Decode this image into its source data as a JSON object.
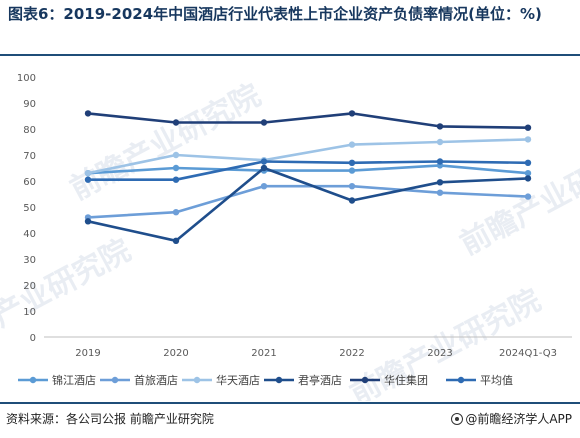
{
  "title": "图表6：2019-2024年中国酒店行业代表性上市企业资产负债率情况(单位：%)",
  "footer": {
    "source": "资料来源：各公司公报 前瞻产业研究院",
    "brand": "@前瞻经济学人APP"
  },
  "watermark": {
    "text": "前瞻产业研究院"
  },
  "chart_data": {
    "type": "line",
    "categories": [
      "2019",
      "2020",
      "2021",
      "2022",
      "2023",
      "2024Q1-Q3"
    ],
    "ylim": [
      0,
      100
    ],
    "yticks": [
      0,
      10,
      20,
      30,
      40,
      50,
      60,
      70,
      80,
      90,
      100
    ],
    "grid": false,
    "legend_position": "bottom",
    "series": [
      {
        "name": "锦江酒店",
        "color": "#5b9bd5",
        "values": [
          63,
          65,
          64,
          64,
          66,
          63
        ]
      },
      {
        "name": "首旅酒店",
        "color": "#6d9ed8",
        "values": [
          46,
          48,
          58,
          58,
          55.5,
          54
        ]
      },
      {
        "name": "华天酒店",
        "color": "#9dc3e6",
        "values": [
          63,
          70,
          68,
          74,
          75,
          76
        ]
      },
      {
        "name": "君亭酒店",
        "color": "#1f4e8c",
        "values": [
          44.5,
          37,
          65,
          52.5,
          59.5,
          61
        ]
      },
      {
        "name": "华住集团",
        "color": "#203f78",
        "values": [
          86,
          82.5,
          82.5,
          86,
          81,
          80.5
        ]
      },
      {
        "name": "平均值",
        "color": "#2e6bb3",
        "values": [
          60.5,
          60.5,
          67.5,
          67,
          67.5,
          67
        ]
      }
    ]
  }
}
